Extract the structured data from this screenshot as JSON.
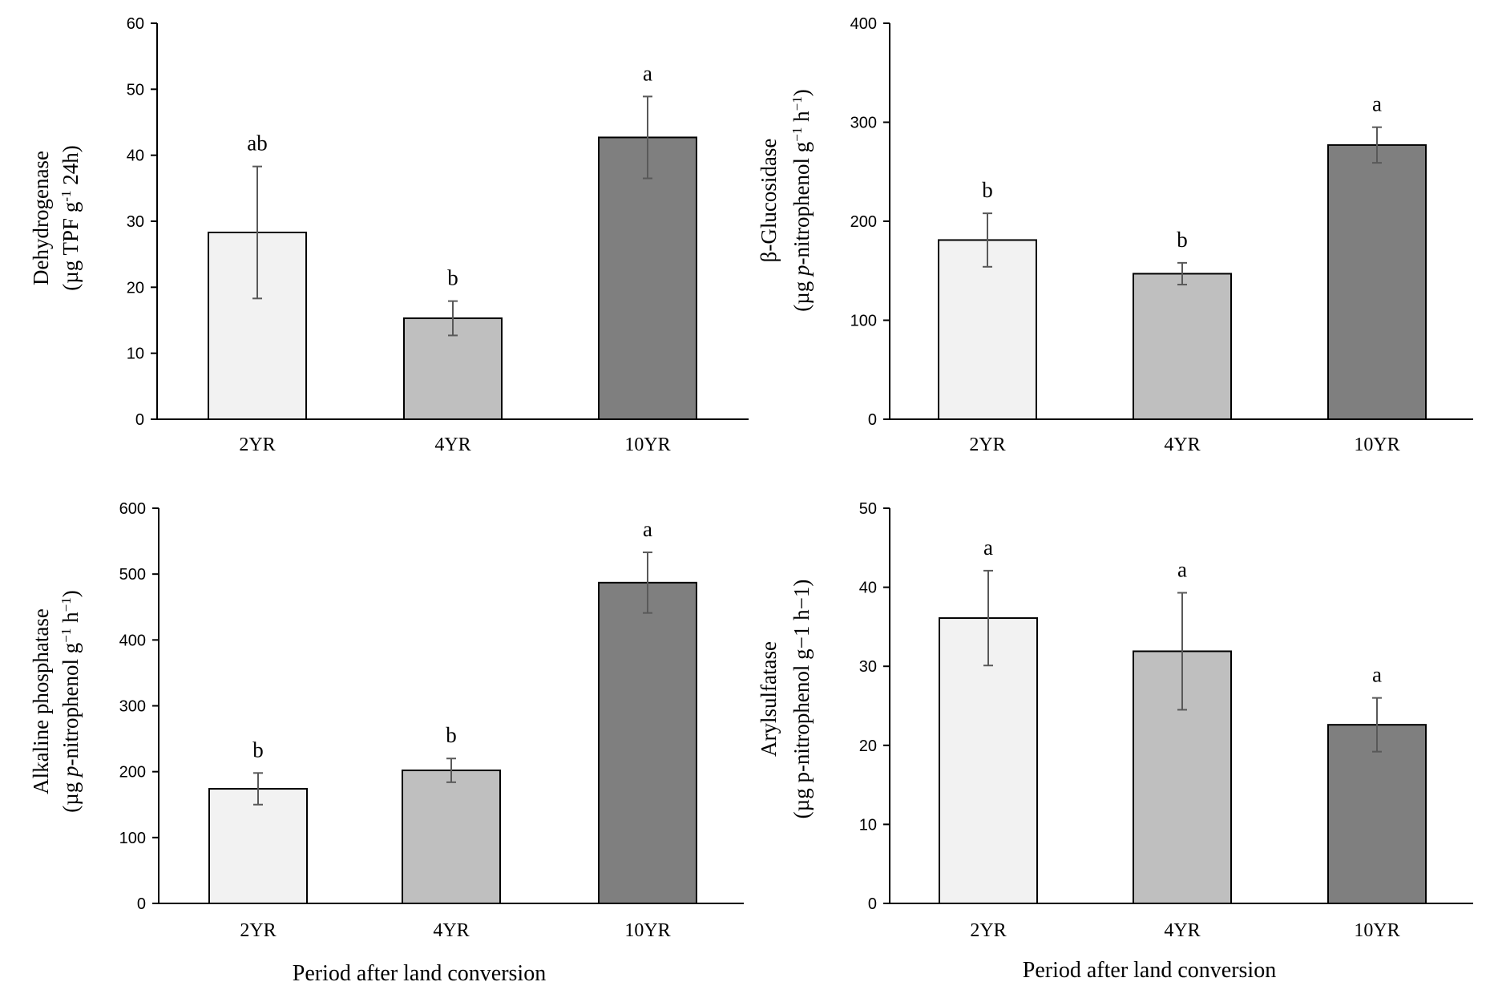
{
  "colors": {
    "bar_2yr": "#f2f2f2",
    "bar_4yr": "#bfbfbf",
    "bar_10yr": "#7f7f7f",
    "error_bar": "#595959",
    "axis": "#000000"
  },
  "chart_data": [
    {
      "type": "bar",
      "position": "top-left",
      "categories": [
        "2YR",
        "4YR",
        "10YR"
      ],
      "values": [
        28.3,
        15.3,
        42.7
      ],
      "errors": [
        10.0,
        2.6,
        6.2
      ],
      "significance": [
        "ab",
        "b",
        "a"
      ],
      "ylim": [
        0,
        60
      ],
      "yticks": [
        0,
        10,
        20,
        30,
        40,
        50,
        60
      ],
      "ylabel_line1": "Dehydrogenase",
      "ylabel_line2_parts": [
        {
          "t": "(µg TPF g",
          "s": "normal"
        },
        {
          "t": "-1",
          "s": "sup"
        },
        {
          "t": " 24h)",
          "s": "normal"
        }
      ],
      "xlabel": ""
    },
    {
      "type": "bar",
      "position": "top-right",
      "categories": [
        "2YR",
        "4YR",
        "10YR"
      ],
      "values": [
        181,
        147,
        277
      ],
      "errors": [
        27,
        11,
        18
      ],
      "significance": [
        "b",
        "b",
        "a"
      ],
      "ylim": [
        0,
        400
      ],
      "yticks": [
        0,
        100,
        200,
        300,
        400
      ],
      "ylabel_line1": "β-Glucosidase",
      "ylabel_line2_parts": [
        {
          "t": "(µg ",
          "s": "normal"
        },
        {
          "t": "p",
          "s": "italic"
        },
        {
          "t": "-nitrophenol  g",
          "s": "normal"
        },
        {
          "t": "−1",
          "s": "sup"
        },
        {
          "t": " h",
          "s": "normal"
        },
        {
          "t": "−1",
          "s": "sup"
        },
        {
          "t": ")",
          "s": "normal"
        }
      ],
      "xlabel": ""
    },
    {
      "type": "bar",
      "position": "bottom-left",
      "categories": [
        "2YR",
        "4YR",
        "10YR"
      ],
      "values": [
        174,
        202,
        487
      ],
      "errors": [
        24,
        18,
        46
      ],
      "significance": [
        "b",
        "b",
        "a"
      ],
      "ylim": [
        0,
        600
      ],
      "yticks": [
        0,
        100,
        200,
        300,
        400,
        500,
        600
      ],
      "ylabel_line1": "Alkaline phosphatase",
      "ylabel_line2_parts": [
        {
          "t": "(µg ",
          "s": "normal"
        },
        {
          "t": "p",
          "s": "italic"
        },
        {
          "t": "-nitrophenol  g",
          "s": "normal"
        },
        {
          "t": "−1",
          "s": "sup"
        },
        {
          "t": " h",
          "s": "normal"
        },
        {
          "t": "−1",
          "s": "sup"
        },
        {
          "t": ")",
          "s": "normal"
        }
      ],
      "xlabel": "Period after land conversion"
    },
    {
      "type": "bar",
      "position": "bottom-right",
      "categories": [
        "2YR",
        "4YR",
        "10YR"
      ],
      "values": [
        36.1,
        31.9,
        22.6
      ],
      "errors": [
        6.0,
        7.4,
        3.4
      ],
      "significance": [
        "a",
        "a",
        "a"
      ],
      "ylim": [
        0,
        50
      ],
      "yticks": [
        0,
        10,
        20,
        30,
        40,
        50
      ],
      "ylabel_line1": "Arylsulfatase",
      "ylabel_line2_parts": [
        {
          "t": "(µg p-nitrophenol  g−1 h−1)",
          "s": "normal"
        }
      ],
      "xlabel": "Period after land conversion"
    }
  ]
}
